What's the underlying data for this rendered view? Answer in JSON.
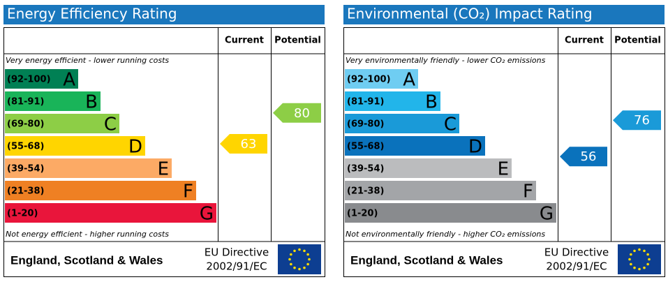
{
  "panels": [
    {
      "title": "Energy Efficiency Rating",
      "col_current": "Current",
      "col_potential": "Potential",
      "top_note": "Very energy efficient - lower running costs",
      "bottom_note": "Not energy efficient - higher running costs",
      "bands": [
        {
          "range": "(92-100)",
          "letter": "A",
          "color": "#008054"
        },
        {
          "range": "(81-91)",
          "letter": "B",
          "color": "#19b459"
        },
        {
          "range": "(69-80)",
          "letter": "C",
          "color": "#8dce46"
        },
        {
          "range": "(55-68)",
          "letter": "D",
          "color": "#ffd500"
        },
        {
          "range": "(39-54)",
          "letter": "E",
          "color": "#fcaa65"
        },
        {
          "range": "(21-38)",
          "letter": "F",
          "color": "#ef8023"
        },
        {
          "range": "(1-20)",
          "letter": "G",
          "color": "#e9153b"
        }
      ],
      "current": {
        "value": 63,
        "color": "#ffd500"
      },
      "potential": {
        "value": 80,
        "color": "#8dce46"
      },
      "region": "England, Scotland & Wales",
      "directive_1": "EU Directive",
      "directive_2": "2002/91/EC"
    },
    {
      "title": "Environmental (CO₂) Impact Rating",
      "col_current": "Current",
      "col_potential": "Potential",
      "top_note": "Very environmentally friendly - lower CO₂ emissions",
      "bottom_note": "Not environmentally friendly - higher CO₂ emissions",
      "bands": [
        {
          "range": "(92-100)",
          "letter": "A",
          "color": "#6fcdf2"
        },
        {
          "range": "(81-91)",
          "letter": "B",
          "color": "#22b5ea"
        },
        {
          "range": "(69-80)",
          "letter": "C",
          "color": "#1a9ad8"
        },
        {
          "range": "(55-68)",
          "letter": "D",
          "color": "#0a72bc"
        },
        {
          "range": "(39-54)",
          "letter": "E",
          "color": "#bbbcbe"
        },
        {
          "range": "(21-38)",
          "letter": "F",
          "color": "#a3a5a8"
        },
        {
          "range": "(1-20)",
          "letter": "G",
          "color": "#898b8e"
        }
      ],
      "current": {
        "value": 56,
        "color": "#0a72bc"
      },
      "potential": {
        "value": 76,
        "color": "#1a9ad8"
      },
      "region": "England, Scotland & Wales",
      "directive_1": "EU Directive",
      "directive_2": "2002/91/EC"
    }
  ]
}
